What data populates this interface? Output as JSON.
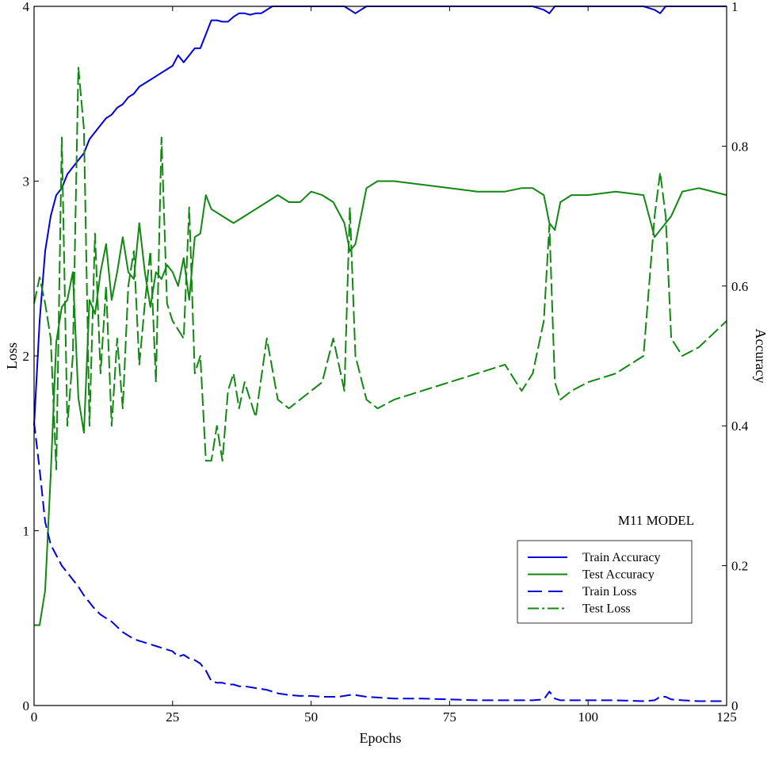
{
  "chart_data": {
    "type": "line",
    "title": "",
    "xlabel": "Epochs",
    "ylabel_left": "Loss",
    "ylabel_right": "Accuracy",
    "xlim": [
      0,
      125
    ],
    "ylim_left": [
      0,
      4
    ],
    "ylim_right": [
      0,
      1
    ],
    "x_ticks": [
      "0",
      "25",
      "50",
      "75",
      "100",
      "125"
    ],
    "y_left_ticks": [
      "0",
      "1",
      "2",
      "3",
      "4"
    ],
    "y_right_ticks": [
      "0",
      "0.2",
      "0.4",
      "0.6",
      "0.8",
      "1"
    ],
    "grid": false,
    "legend_position": "lower-right",
    "annotation": "M11 MODEL",
    "series": [
      {
        "name": "Train Accuracy",
        "axis": "right",
        "color": "#0000dd",
        "dash": "solid",
        "x": [
          0,
          1,
          2,
          3,
          4,
          5,
          6,
          7,
          8,
          9,
          10,
          11,
          12,
          13,
          14,
          15,
          16,
          17,
          18,
          19,
          20,
          21,
          22,
          23,
          24,
          25,
          26,
          27,
          28,
          29,
          30,
          31,
          32,
          33,
          34,
          35,
          36,
          37,
          38,
          39,
          40,
          41,
          42,
          43,
          44,
          45,
          46,
          47,
          48,
          49,
          50,
          52,
          54,
          56,
          57,
          58,
          60,
          65,
          70,
          75,
          80,
          85,
          90,
          92,
          93,
          94,
          95,
          100,
          105,
          110,
          112,
          113,
          114,
          115,
          117,
          120,
          125
        ],
        "y": [
          0.4,
          0.55,
          0.65,
          0.7,
          0.73,
          0.74,
          0.76,
          0.77,
          0.78,
          0.79,
          0.81,
          0.82,
          0.83,
          0.84,
          0.845,
          0.855,
          0.86,
          0.87,
          0.875,
          0.885,
          0.89,
          0.895,
          0.9,
          0.905,
          0.91,
          0.915,
          0.93,
          0.92,
          0.93,
          0.94,
          0.94,
          0.96,
          0.98,
          0.98,
          0.978,
          0.978,
          0.985,
          0.99,
          0.99,
          0.988,
          0.99,
          0.99,
          0.995,
          1.0,
          1.0,
          1.0,
          1.0,
          1.0,
          1.0,
          1.0,
          1.0,
          1.0,
          1.0,
          1.0,
          0.995,
          0.99,
          1.0,
          1.0,
          1.0,
          1.0,
          1.0,
          1.0,
          1.0,
          0.995,
          0.99,
          1.0,
          1.0,
          1.0,
          1.0,
          1.0,
          0.995,
          0.99,
          1.0,
          1.0,
          1.0,
          1.0,
          1.0
        ]
      },
      {
        "name": "Test Accuracy",
        "axis": "right",
        "color": "#118811",
        "dash": "solid",
        "x": [
          0,
          1,
          2,
          3,
          4,
          5,
          6,
          7,
          8,
          9,
          10,
          11,
          12,
          13,
          14,
          15,
          16,
          17,
          18,
          19,
          20,
          21,
          22,
          23,
          24,
          25,
          26,
          27,
          28,
          29,
          30,
          31,
          32,
          34,
          36,
          38,
          40,
          42,
          44,
          46,
          48,
          50,
          52,
          54,
          56,
          57,
          58,
          60,
          62,
          65,
          70,
          75,
          80,
          85,
          88,
          90,
          92,
          93,
          94,
          95,
          97,
          100,
          105,
          110,
          112,
          113,
          114,
          115,
          117,
          120,
          125
        ],
        "y": [
          0.115,
          0.115,
          0.165,
          0.33,
          0.52,
          0.57,
          0.58,
          0.62,
          0.44,
          0.39,
          0.58,
          0.56,
          0.62,
          0.66,
          0.58,
          0.62,
          0.67,
          0.62,
          0.61,
          0.69,
          0.62,
          0.57,
          0.62,
          0.61,
          0.63,
          0.62,
          0.6,
          0.64,
          0.58,
          0.67,
          0.675,
          0.73,
          0.71,
          0.7,
          0.69,
          0.7,
          0.71,
          0.72,
          0.73,
          0.72,
          0.72,
          0.735,
          0.73,
          0.72,
          0.69,
          0.65,
          0.66,
          0.74,
          0.75,
          0.75,
          0.745,
          0.74,
          0.735,
          0.735,
          0.74,
          0.74,
          0.73,
          0.69,
          0.68,
          0.72,
          0.73,
          0.73,
          0.735,
          0.73,
          0.67,
          0.68,
          0.69,
          0.7,
          0.735,
          0.74,
          0.73
        ]
      },
      {
        "name": "Train Loss",
        "axis": "left",
        "color": "#0000dd",
        "dash": "dashed",
        "x": [
          0,
          1,
          2,
          3,
          4,
          5,
          6,
          7,
          8,
          9,
          10,
          11,
          12,
          13,
          14,
          15,
          16,
          17,
          18,
          19,
          20,
          21,
          22,
          23,
          24,
          25,
          26,
          27,
          28,
          29,
          30,
          31,
          32,
          33,
          34,
          35,
          36,
          37,
          38,
          40,
          42,
          44,
          46,
          48,
          50,
          52,
          55,
          57,
          58,
          60,
          65,
          70,
          75,
          80,
          85,
          88,
          90,
          92,
          93,
          94,
          95,
          100,
          105,
          110,
          112,
          113,
          114,
          115,
          117,
          120,
          125
        ],
        "y": [
          1.62,
          1.35,
          1.05,
          0.92,
          0.86,
          0.8,
          0.76,
          0.72,
          0.68,
          0.63,
          0.59,
          0.55,
          0.52,
          0.5,
          0.48,
          0.45,
          0.42,
          0.4,
          0.38,
          0.37,
          0.36,
          0.35,
          0.34,
          0.33,
          0.32,
          0.31,
          0.28,
          0.29,
          0.27,
          0.26,
          0.24,
          0.2,
          0.14,
          0.13,
          0.13,
          0.12,
          0.12,
          0.11,
          0.11,
          0.1,
          0.09,
          0.07,
          0.06,
          0.055,
          0.055,
          0.05,
          0.05,
          0.06,
          0.06,
          0.05,
          0.04,
          0.04,
          0.035,
          0.03,
          0.03,
          0.03,
          0.03,
          0.035,
          0.08,
          0.04,
          0.03,
          0.03,
          0.03,
          0.025,
          0.03,
          0.05,
          0.05,
          0.035,
          0.03,
          0.025,
          0.025
        ]
      },
      {
        "name": "Test Loss",
        "axis": "left",
        "color": "#118811",
        "dash": "longdash",
        "x": [
          0,
          1,
          2,
          3,
          4,
          5,
          6,
          7,
          8,
          9,
          10,
          11,
          12,
          13,
          14,
          15,
          16,
          17,
          18,
          19,
          20,
          21,
          22,
          23,
          24,
          25,
          26,
          27,
          28,
          29,
          30,
          31,
          32,
          33,
          34,
          35,
          36,
          37,
          38,
          40,
          42,
          44,
          46,
          48,
          50,
          52,
          54,
          56,
          57,
          58,
          60,
          62,
          65,
          70,
          75,
          80,
          85,
          88,
          90,
          92,
          93,
          94,
          95,
          97,
          100,
          105,
          110,
          112,
          113,
          114,
          115,
          117,
          120,
          125
        ],
        "y": [
          2.3,
          2.45,
          2.3,
          2.1,
          1.35,
          3.25,
          1.6,
          2.0,
          3.65,
          3.3,
          1.6,
          2.7,
          1.9,
          2.4,
          1.6,
          2.1,
          1.7,
          2.4,
          2.6,
          1.95,
          2.3,
          2.6,
          1.85,
          3.25,
          2.3,
          2.2,
          2.15,
          2.1,
          2.85,
          1.9,
          2.0,
          1.4,
          1.4,
          1.6,
          1.4,
          1.8,
          1.9,
          1.7,
          1.85,
          1.65,
          2.1,
          1.75,
          1.7,
          1.75,
          1.8,
          1.85,
          2.1,
          1.8,
          2.85,
          2.0,
          1.75,
          1.7,
          1.75,
          1.8,
          1.85,
          1.9,
          1.95,
          1.8,
          1.9,
          2.2,
          2.75,
          1.85,
          1.75,
          1.8,
          1.85,
          1.9,
          2.0,
          2.8,
          3.05,
          2.8,
          2.1,
          2.0,
          2.05,
          2.2
        ]
      }
    ]
  }
}
